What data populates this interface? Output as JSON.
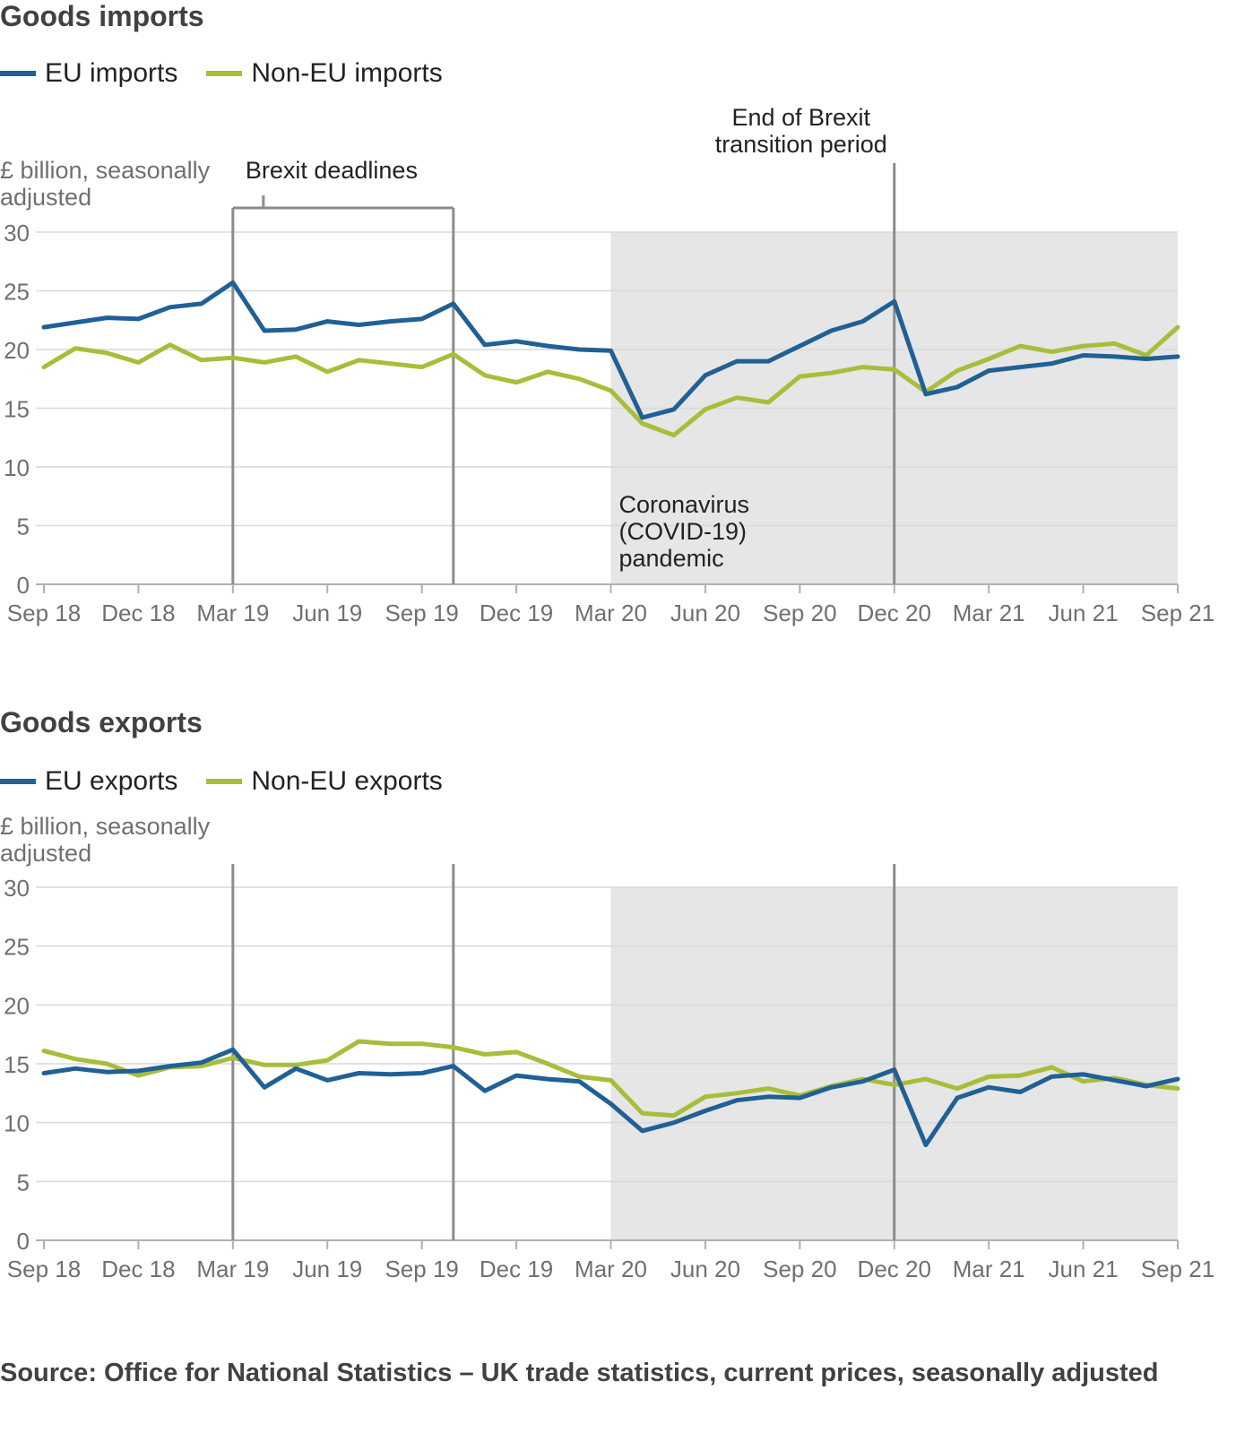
{
  "colors": {
    "eu": "#206095",
    "non_eu": "#a8bd3a",
    "shade": "#e6e6e6",
    "grid": "#d9d9d9",
    "marker": "#8c8c8c",
    "axis_text": "#707070"
  },
  "source": "Source: Office for National Statistics – UK trade statistics, current prices, seasonally adjusted",
  "chart_data": [
    {
      "type": "line",
      "title": "Goods imports",
      "ylabel": "£ billion, seasonally adjusted",
      "ylim": [
        0,
        30
      ],
      "yticks": [
        0,
        5,
        10,
        15,
        20,
        25,
        30
      ],
      "grid": true,
      "legend_position": "top-left",
      "x_tick_labels": [
        "Sep 18",
        "Dec 18",
        "Mar 19",
        "Jun 19",
        "Sep 19",
        "Dec 19",
        "Mar 20",
        "Jun 20",
        "Sep 20",
        "Dec 20",
        "Mar 21",
        "Jun 21",
        "Sep 21"
      ],
      "x": [
        "Sep 18",
        "Oct 18",
        "Nov 18",
        "Dec 18",
        "Jan 19",
        "Feb 19",
        "Mar 19",
        "Apr 19",
        "May 19",
        "Jun 19",
        "Jul 19",
        "Aug 19",
        "Sep 19",
        "Oct 19",
        "Nov 19",
        "Dec 19",
        "Jan 20",
        "Feb 20",
        "Mar 20",
        "Apr 20",
        "May 20",
        "Jun 20",
        "Jul 20",
        "Aug 20",
        "Sep 20",
        "Oct 20",
        "Nov 20",
        "Dec 20",
        "Jan 21",
        "Feb 21",
        "Mar 21",
        "Apr 21",
        "May 21",
        "Jun 21",
        "Jul 21",
        "Aug 21",
        "Sep 21"
      ],
      "series": [
        {
          "name": "EU imports",
          "color": "#206095",
          "values": [
            21.9,
            22.3,
            22.7,
            22.6,
            23.6,
            23.9,
            25.7,
            21.6,
            21.7,
            22.4,
            22.1,
            22.4,
            22.6,
            23.9,
            20.4,
            20.7,
            20.3,
            20.0,
            19.9,
            14.2,
            14.9,
            17.8,
            19.0,
            19.0,
            20.3,
            21.6,
            22.4,
            24.1,
            16.2,
            16.8,
            18.2,
            18.5,
            18.8,
            19.5,
            19.4,
            19.2,
            19.4
          ]
        },
        {
          "name": "Non-EU imports",
          "color": "#a8bd3a",
          "values": [
            18.5,
            20.1,
            19.7,
            18.9,
            20.4,
            19.1,
            19.3,
            18.9,
            19.4,
            18.1,
            19.1,
            18.8,
            18.5,
            19.6,
            17.8,
            17.2,
            18.1,
            17.5,
            16.5,
            13.7,
            12.7,
            14.9,
            15.9,
            15.5,
            17.7,
            18.0,
            18.5,
            18.3,
            16.4,
            18.2,
            19.2,
            20.3,
            19.8,
            20.3,
            20.5,
            19.5,
            21.9
          ]
        }
      ],
      "annotations": {
        "brexit_deadlines": "Brexit deadlines",
        "brexit_deadline_dates": [
          "Mar 19",
          "Oct 19"
        ],
        "end_transition": "End of Brexit transition period",
        "end_transition_lines": [
          "End of Brexit",
          "transition period"
        ],
        "end_transition_date": "Dec 20",
        "pandemic": "Coronavirus (COVID-19) pandemic",
        "pandemic_lines": [
          "Coronavirus",
          "(COVID-19)",
          "pandemic"
        ],
        "pandemic_range": [
          "Mar 20",
          "Sep 21"
        ]
      }
    },
    {
      "type": "line",
      "title": "Goods exports",
      "ylabel": "£ billion, seasonally adjusted",
      "ylim": [
        0,
        30
      ],
      "yticks": [
        0,
        5,
        10,
        15,
        20,
        25,
        30
      ],
      "grid": true,
      "legend_position": "top-left",
      "x_tick_labels": [
        "Sep 18",
        "Dec 18",
        "Mar 19",
        "Jun 19",
        "Sep 19",
        "Dec 19",
        "Mar 20",
        "Jun 20",
        "Sep 20",
        "Dec 20",
        "Mar 21",
        "Jun 21",
        "Sep 21"
      ],
      "x": [
        "Sep 18",
        "Oct 18",
        "Nov 18",
        "Dec 18",
        "Jan 19",
        "Feb 19",
        "Mar 19",
        "Apr 19",
        "May 19",
        "Jun 19",
        "Jul 19",
        "Aug 19",
        "Sep 19",
        "Oct 19",
        "Nov 19",
        "Dec 19",
        "Jan 20",
        "Feb 20",
        "Mar 20",
        "Apr 20",
        "May 20",
        "Jun 20",
        "Jul 20",
        "Aug 20",
        "Sep 20",
        "Oct 20",
        "Nov 20",
        "Dec 20",
        "Jan 21",
        "Feb 21",
        "Mar 21",
        "Apr 21",
        "May 21",
        "Jun 21",
        "Jul 21",
        "Aug 21",
        "Sep 21"
      ],
      "series": [
        {
          "name": "EU exports",
          "color": "#206095",
          "values": [
            14.2,
            14.6,
            14.3,
            14.4,
            14.8,
            15.1,
            16.2,
            13.0,
            14.6,
            13.6,
            14.2,
            14.1,
            14.2,
            14.8,
            12.7,
            14.0,
            13.7,
            13.5,
            11.6,
            9.3,
            10.0,
            11.0,
            11.9,
            12.2,
            12.1,
            13.0,
            13.5,
            14.5,
            8.1,
            12.1,
            13.0,
            12.6,
            13.9,
            14.1,
            13.6,
            13.1,
            13.7
          ]
        },
        {
          "name": "Non-EU exports",
          "color": "#a8bd3a",
          "values": [
            16.1,
            15.4,
            15.0,
            14.0,
            14.7,
            14.8,
            15.5,
            14.9,
            14.9,
            15.3,
            16.9,
            16.7,
            16.7,
            16.4,
            15.8,
            16.0,
            15.0,
            13.9,
            13.6,
            10.8,
            10.6,
            12.2,
            12.5,
            12.9,
            12.3,
            13.1,
            13.7,
            13.2,
            13.7,
            12.9,
            13.9,
            14.0,
            14.7,
            13.5,
            13.8,
            13.2,
            12.9
          ]
        }
      ],
      "annotations": {
        "brexit_deadline_dates": [
          "Mar 19",
          "Oct 19"
        ],
        "end_transition_date": "Dec 20",
        "pandemic_range": [
          "Mar 20",
          "Sep 21"
        ]
      }
    }
  ]
}
